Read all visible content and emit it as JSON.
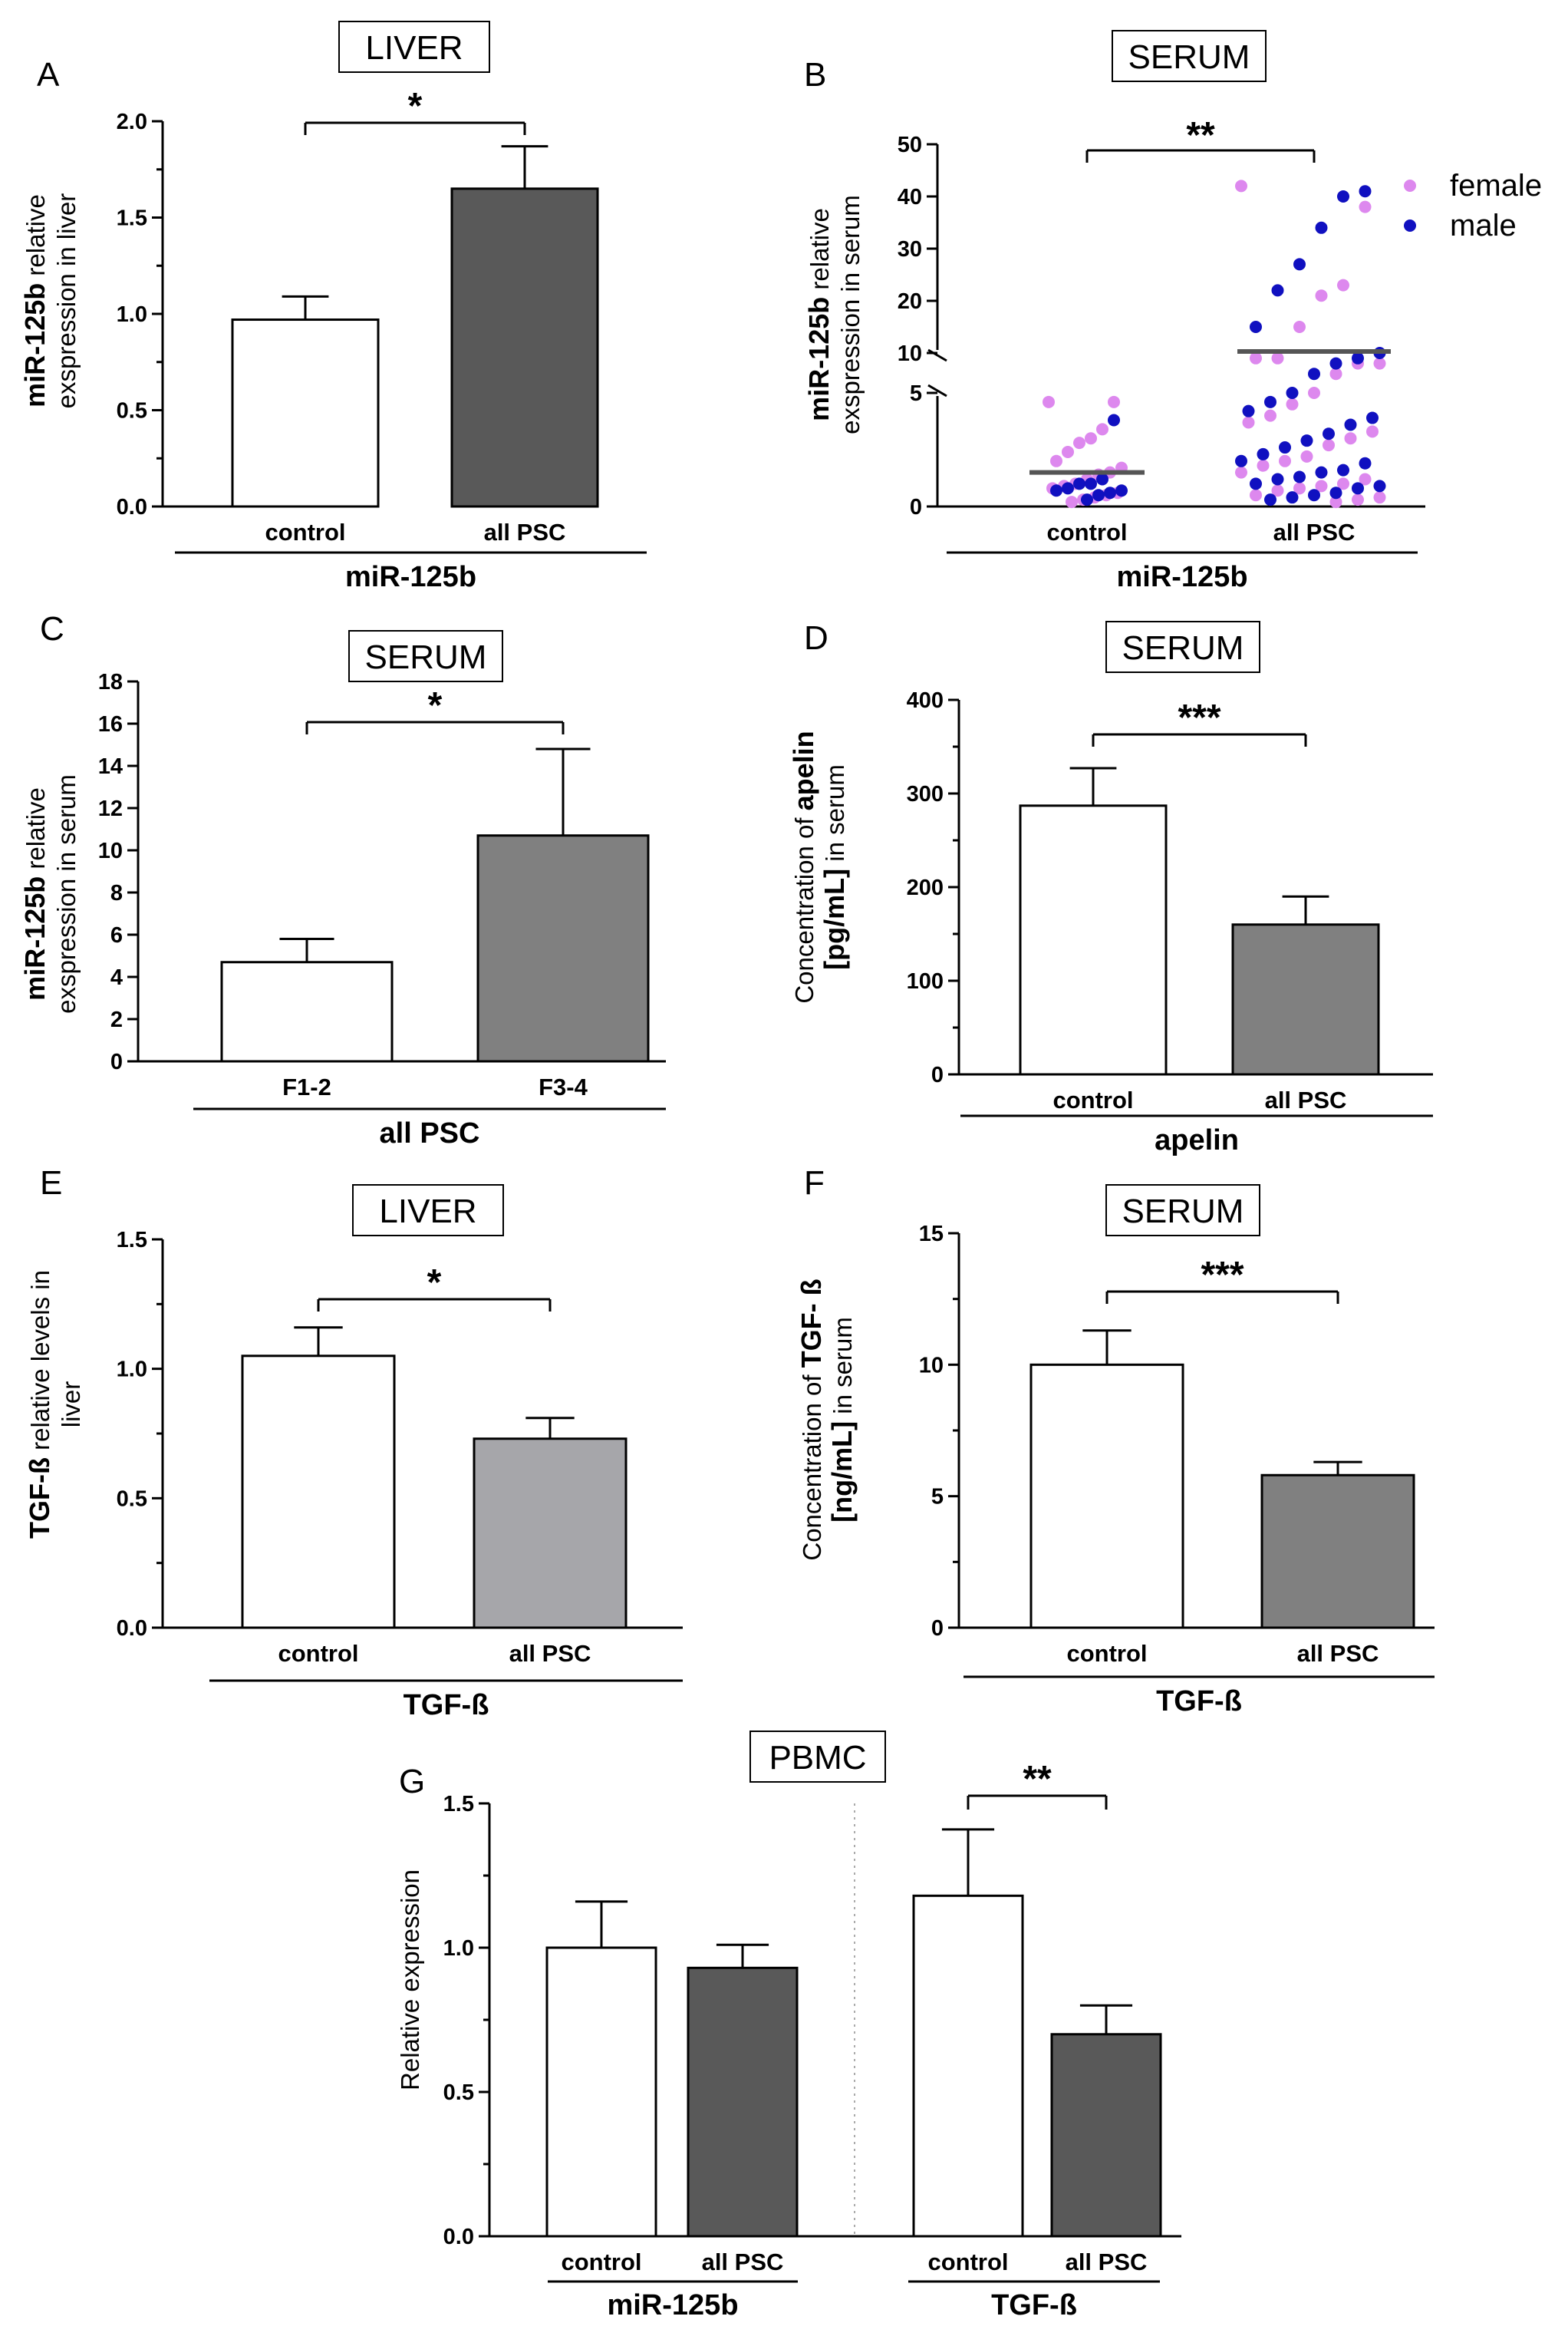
{
  "chart_data": [
    {
      "panel": "A",
      "type": "bar",
      "label": "LIVER",
      "categories": [
        "control",
        "all PSC"
      ],
      "values": [
        0.97,
        1.65
      ],
      "errors": [
        0.12,
        0.22
      ],
      "colors": [
        "#ffffff",
        "#595959"
      ],
      "ylim": [
        0,
        2.0
      ],
      "yticks": [
        "0.0",
        "0.5",
        "1.0",
        "1.5",
        "2.0"
      ],
      "ylabel_bold": "miR-125b",
      "ylabel_rest": " relative",
      "ylabel_line2": "exspression in liver",
      "group_label": "miR-125b",
      "significance": "*"
    },
    {
      "panel": "B",
      "type": "scatter",
      "label": "SERUM",
      "categories": [
        "control",
        "all PSC"
      ],
      "yticks": [
        "0",
        "5",
        "10",
        "20",
        "30",
        "40",
        "50"
      ],
      "y_break": "5 → 10",
      "ylabel_bold": "miR-125b",
      "ylabel_rest": " relative",
      "ylabel_line2": "exspression in serum",
      "group_label": "miR-125b",
      "significance": "**",
      "legend": [
        {
          "name": "female",
          "color": "#dd88ee"
        },
        {
          "name": "male",
          "color": "#1010c0"
        }
      ],
      "means": [
        1.5,
        10.3
      ],
      "points": {
        "control": {
          "female": [
            4.6,
            4.6,
            3.4,
            3.0,
            2.8,
            2.4,
            2.0,
            1.7,
            1.5,
            1.4,
            1.2,
            1.0,
            0.9,
            0.8,
            0.6,
            0.5,
            0.4,
            0.3,
            0.2
          ],
          "male": [
            3.8,
            1.2,
            1.0,
            1.0,
            0.8,
            0.7,
            0.7,
            0.6,
            0.5,
            0.3
          ]
        },
        "all PSC": {
          "female": [
            42,
            38,
            23,
            21,
            15,
            9,
            9,
            8,
            8,
            6,
            5,
            4.5,
            4.0,
            3.7,
            3.3,
            3.0,
            2.7,
            2.2,
            2.0,
            1.8,
            1.5,
            1.2,
            1.0,
            0.9,
            0.8,
            0.7,
            0.5,
            0.4,
            0.3,
            0.2
          ],
          "male": [
            41,
            40,
            34,
            27,
            22,
            15,
            10,
            9,
            8,
            6,
            5,
            4.6,
            4.2,
            3.9,
            3.6,
            3.2,
            2.9,
            2.6,
            2.3,
            2.0,
            1.9,
            1.6,
            1.5,
            1.3,
            1.2,
            1.0,
            0.9,
            0.8,
            0.6,
            0.5,
            0.4,
            0.3
          ]
        }
      }
    },
    {
      "panel": "C",
      "type": "bar",
      "label": "SERUM",
      "categories": [
        "F1-2",
        "F3-4"
      ],
      "values": [
        4.7,
        10.7
      ],
      "errors": [
        1.1,
        4.1
      ],
      "colors": [
        "#ffffff",
        "#808080"
      ],
      "ylim": [
        0,
        18
      ],
      "yticks": [
        "0",
        "2",
        "4",
        "6",
        "8",
        "10",
        "12",
        "14",
        "16",
        "18"
      ],
      "ylabel_bold": "miR-125b",
      "ylabel_rest": " relative",
      "ylabel_line2": "exspression in serum",
      "group_label": "all PSC",
      "significance": "*"
    },
    {
      "panel": "D",
      "type": "bar",
      "label": "SERUM",
      "categories": [
        "control",
        "all PSC"
      ],
      "values": [
        287,
        160
      ],
      "errors": [
        40,
        30
      ],
      "colors": [
        "#ffffff",
        "#808080"
      ],
      "ylim": [
        0,
        400
      ],
      "yticks": [
        "0",
        "100",
        "200",
        "300",
        "400"
      ],
      "ylabel_pre": "Concentration  of ",
      "ylabel_bold": "apelin",
      "ylabel_line2": "[pg/mL]",
      "ylabel_line2_rest": " in serum",
      "group_label": "apelin",
      "significance": "***"
    },
    {
      "panel": "E",
      "type": "bar",
      "label": "LIVER",
      "categories": [
        "control",
        "all PSC"
      ],
      "values": [
        1.05,
        0.73
      ],
      "errors": [
        0.11,
        0.08
      ],
      "colors": [
        "#ffffff",
        "#a6a6aa"
      ],
      "ylim": [
        0,
        1.5
      ],
      "yticks": [
        "0.0",
        "0.5",
        "1.0",
        "1.5"
      ],
      "ylabel_bold": "TGF-ß",
      "ylabel_rest": " relative  levels in",
      "ylabel_line2": "liver",
      "group_label": "TGF-ß",
      "significance": "*"
    },
    {
      "panel": "F",
      "type": "bar",
      "label": "SERUM",
      "categories": [
        "control",
        "all PSC"
      ],
      "values": [
        10.0,
        5.8
      ],
      "errors": [
        1.3,
        0.5
      ],
      "colors": [
        "#ffffff",
        "#808080"
      ],
      "ylim": [
        0,
        15
      ],
      "yticks": [
        "0",
        "5",
        "10",
        "15"
      ],
      "ylabel_pre": "Concentration  of ",
      "ylabel_bold": "TGF- ß",
      "ylabel_line2": "[ng/mL]",
      "ylabel_line2_rest": " in serum",
      "group_label": "TGF-ß",
      "significance": "***"
    },
    {
      "panel": "G",
      "type": "bar",
      "label": "PBMC",
      "groups": [
        {
          "name": "miR-125b",
          "categories": [
            "control",
            "all PSC"
          ],
          "values": [
            1.0,
            0.93
          ],
          "errors": [
            0.16,
            0.08
          ]
        },
        {
          "name": "TGF-ß",
          "categories": [
            "control",
            "all PSC"
          ],
          "values": [
            1.18,
            0.7
          ],
          "errors": [
            0.23,
            0.1
          ]
        }
      ],
      "colors": [
        "#ffffff",
        "#595959"
      ],
      "ylim": [
        0,
        1.5
      ],
      "yticks": [
        "0.0",
        "0.5",
        "1.0",
        "1.5"
      ],
      "ylabel": "Relative  expression",
      "significance": "**"
    }
  ]
}
